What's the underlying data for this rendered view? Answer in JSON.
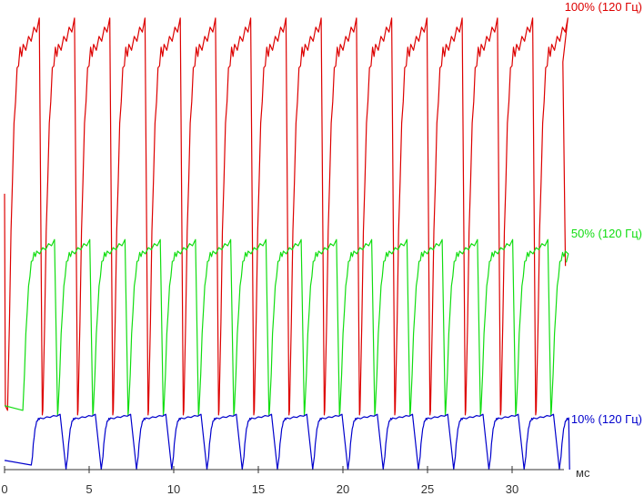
{
  "chart_data": {
    "type": "line",
    "xlabel": "мс",
    "x_ticks": [
      0,
      5,
      10,
      15,
      20,
      25,
      30
    ],
    "xlim": [
      0,
      33.4
    ],
    "ylim": [
      0,
      100
    ],
    "grid": false,
    "legend": "inline-right",
    "refresh_period_ms": 2.083,
    "series": [
      {
        "name": "100% (120 Гц)",
        "color": "#dd0000",
        "low": 12,
        "high": 98,
        "pulses": 16,
        "first_rise_ms": 0.2,
        "rise_ms": 0.9,
        "fall_ms": 0.18
      },
      {
        "name": "50% (120 Гц)",
        "color": "#11dd11",
        "low": 12,
        "high": 50,
        "pulses": 16,
        "first_rise_ms": 1.1,
        "rise_ms": 0.8,
        "fall_ms": 0.18
      },
      {
        "name": "10% (120 Гц)",
        "color": "#0000cc",
        "low": 0,
        "high": 12,
        "pulses": 16,
        "first_rise_ms": 1.6,
        "rise_ms": 0.5,
        "fall_ms": 0.35
      }
    ]
  }
}
